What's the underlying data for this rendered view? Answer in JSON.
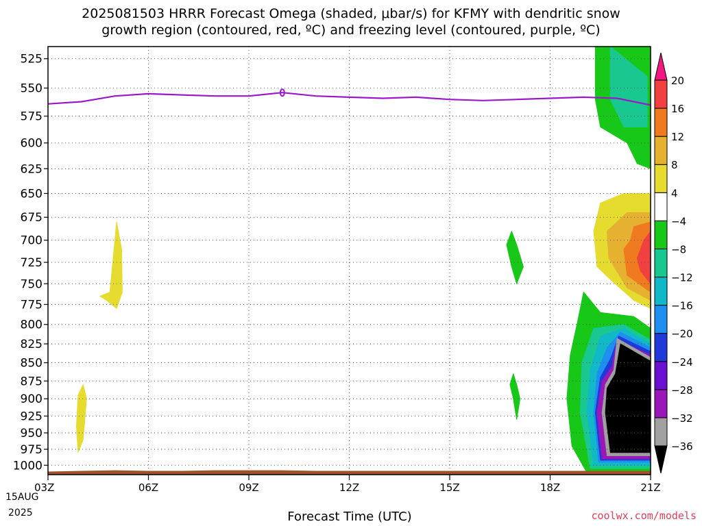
{
  "header": {
    "title_line1": "2025081503 HRRR Forecast Omega (shaded, μbar/s) for KFMY with dendritic snow",
    "title_line2": "growth region (contoured, red, ºC) and freezing level (contoured, purple, ºC)"
  },
  "footer": {
    "credit": "coolwx.com/models",
    "date_line1": "15AUG",
    "date_line2": "2025"
  },
  "chart_data": {
    "type": "heatmap",
    "xlabel": "Forecast Time (UTC)",
    "ylabel": "",
    "x_ticks": [
      "03Z",
      "06Z",
      "09Z",
      "12Z",
      "15Z",
      "18Z",
      "21Z"
    ],
    "x_hours": [
      3,
      6,
      9,
      12,
      15,
      18,
      21
    ],
    "xlim": [
      3,
      21
    ],
    "y_ticks": [
      525,
      550,
      575,
      600,
      625,
      650,
      675,
      700,
      725,
      750,
      775,
      800,
      825,
      850,
      875,
      900,
      925,
      950,
      975,
      1000
    ],
    "ylim": [
      1015,
      515
    ],
    "y_scale": "log-pressure (hPa)",
    "grid": true,
    "colorbar": {
      "levels": [
        -36,
        -32,
        -28,
        -24,
        -20,
        -16,
        -12,
        -8,
        -4,
        4,
        8,
        12,
        16,
        20
      ],
      "labels": [
        "20",
        "16",
        "12",
        "8",
        "4",
        "−4",
        "−8",
        "−12",
        "−16",
        "−20",
        "−24",
        "−28",
        "−32",
        "−36"
      ],
      "colors_bottom_to_top": [
        "#000000",
        "#a0a0a0",
        "#9a18b8",
        "#6a10d0",
        "#1f3ad8",
        "#1e8ef0",
        "#10b8c8",
        "#18c890",
        "#18c818",
        "#ffffff",
        "#e6dc30",
        "#e6b030",
        "#f07a20",
        "#f04040",
        "#f01880"
      ]
    },
    "freezing_level": {
      "color": "#9a18c8",
      "x": [
        3,
        4,
        5,
        6,
        7,
        8,
        9,
        10,
        11,
        12,
        13,
        14,
        15,
        16,
        17,
        18,
        19,
        20,
        21
      ],
      "y": [
        564,
        562,
        557,
        555,
        556,
        557,
        557,
        554,
        557,
        558,
        559,
        558,
        560,
        561,
        560,
        559,
        558,
        559,
        565
      ]
    },
    "omega_regions": [
      {
        "name": "yellow-pos-0400-0500",
        "color": "#e6dc30",
        "x": [
          4.85,
          5.05,
          5.2,
          5.22,
          5.05,
          4.75,
          4.55
        ],
        "y": [
          760,
          680,
          710,
          760,
          780,
          770,
          765
        ]
      },
      {
        "name": "yellow-pos-0400-0900",
        "color": "#e6dc30",
        "x": [
          4.05,
          4.15,
          4.05,
          3.9,
          3.85,
          3.9
        ],
        "y": [
          880,
          900,
          960,
          980,
          940,
          895
        ]
      },
      {
        "name": "green-neg-1700-0700",
        "color": "#18c818",
        "x": [
          16.85,
          17.0,
          17.2,
          17.0,
          16.85,
          16.7
        ],
        "y": [
          690,
          705,
          730,
          750,
          730,
          705
        ]
      },
      {
        "name": "green-neg-1700-0900",
        "color": "#18c818",
        "x": [
          16.9,
          17.0,
          17.1,
          17.0,
          16.9,
          16.8
        ],
        "y": [
          865,
          880,
          900,
          930,
          900,
          880
        ]
      },
      {
        "name": "green-upper-right",
        "color": "#18c818",
        "x": [
          20.4,
          21.0,
          21.0,
          20.6,
          20.3,
          19.5,
          19.35,
          19.35
        ],
        "y": [
          515,
          515,
          625,
          620,
          600,
          585,
          560,
          515
        ]
      },
      {
        "name": "teal-upper-right",
        "color": "#18c890",
        "x": [
          19.8,
          20.9,
          20.9,
          20.2,
          19.8
        ],
        "y": [
          515,
          540,
          585,
          585,
          560
        ]
      },
      {
        "name": "yellow-pos-right",
        "color": "#e6dc30",
        "x": [
          20.2,
          21.0,
          21.0,
          20.5,
          19.8,
          19.4,
          19.3,
          19.5
        ],
        "y": [
          650,
          650,
          780,
          770,
          745,
          730,
          690,
          660
        ]
      },
      {
        "name": "gold-pos-right",
        "color": "#e6b030",
        "x": [
          20.3,
          21.0,
          21.0,
          20.3,
          19.75,
          19.7
        ],
        "y": [
          670,
          670,
          770,
          755,
          720,
          690
        ]
      },
      {
        "name": "orange-pos-right",
        "color": "#f07a20",
        "x": [
          20.5,
          21.0,
          21.0,
          20.3,
          20.2,
          20.4
        ],
        "y": [
          685,
          680,
          760,
          740,
          710,
          700
        ]
      },
      {
        "name": "red-pos-right",
        "color": "#f04040",
        "x": [
          20.8,
          21.0,
          21.0,
          20.7,
          20.6
        ],
        "y": [
          700,
          690,
          750,
          735,
          720
        ]
      },
      {
        "name": "green-neg-lower-right",
        "color": "#18c818",
        "x": [
          19.0,
          19.5,
          20.5,
          21.0,
          21.0,
          19.1,
          18.65,
          18.5,
          18.6,
          18.8
        ],
        "y": [
          760,
          785,
          790,
          805,
          1012,
          1012,
          970,
          900,
          840,
          800
        ]
      },
      {
        "name": "teal-neg-lower-right",
        "color": "#18c890",
        "x": [
          19.3,
          20.2,
          21.0,
          21.0,
          19.2,
          18.9,
          18.95
        ],
        "y": [
          805,
          800,
          820,
          1005,
          1005,
          920,
          850
        ]
      },
      {
        "name": "cyan-neg-lower-right",
        "color": "#10b8c8",
        "x": [
          19.5,
          20.2,
          21.0,
          21.0,
          19.3,
          19.1,
          19.2
        ],
        "y": [
          815,
          805,
          825,
          1000,
          1000,
          920,
          860
        ]
      },
      {
        "name": "blue-neg-lower-right",
        "color": "#1e8ef0",
        "x": [
          19.7,
          20.1,
          21.0,
          21.0,
          19.45,
          19.3,
          19.4
        ],
        "y": [
          830,
          810,
          830,
          995,
          995,
          920,
          865
        ]
      },
      {
        "name": "darkblue-neg-lower-right",
        "color": "#1f3ad8",
        "x": [
          19.8,
          20.05,
          21.0,
          21.0,
          19.5,
          19.35,
          19.5
        ],
        "y": [
          845,
          815,
          835,
          992,
          992,
          920,
          870
        ]
      },
      {
        "name": "purple-neg-lower-right",
        "color": "#9a18b8",
        "x": [
          19.85,
          20.0,
          21.0,
          21.0,
          19.55,
          19.4,
          19.55
        ],
        "y": [
          855,
          820,
          840,
          990,
          990,
          920,
          875
        ]
      },
      {
        "name": "gray-neg-lower-right",
        "color": "#a0a0a0",
        "x": [
          19.9,
          20.0,
          21.0,
          21.0,
          19.7,
          19.55,
          19.65
        ],
        "y": [
          860,
          818,
          843,
          985,
          985,
          920,
          880
        ]
      },
      {
        "name": "black-neg-lower-right",
        "color": "#000000",
        "x": [
          19.95,
          20.1,
          21.0,
          21.0,
          19.8,
          19.65,
          19.7
        ],
        "y": [
          865,
          825,
          848,
          980,
          980,
          920,
          885
        ]
      }
    ],
    "terrain": {
      "color": "#a0522d",
      "x": [
        3,
        4,
        5,
        6,
        7,
        8,
        9,
        10,
        11,
        12,
        13,
        14,
        15,
        16,
        17,
        18,
        19,
        20,
        21
      ],
      "y": [
        1010,
        1009,
        1008,
        1009,
        1009,
        1008,
        1008,
        1008,
        1009,
        1009,
        1009,
        1009,
        1009,
        1009,
        1009,
        1009,
        1009,
        1009,
        1009
      ]
    }
  }
}
